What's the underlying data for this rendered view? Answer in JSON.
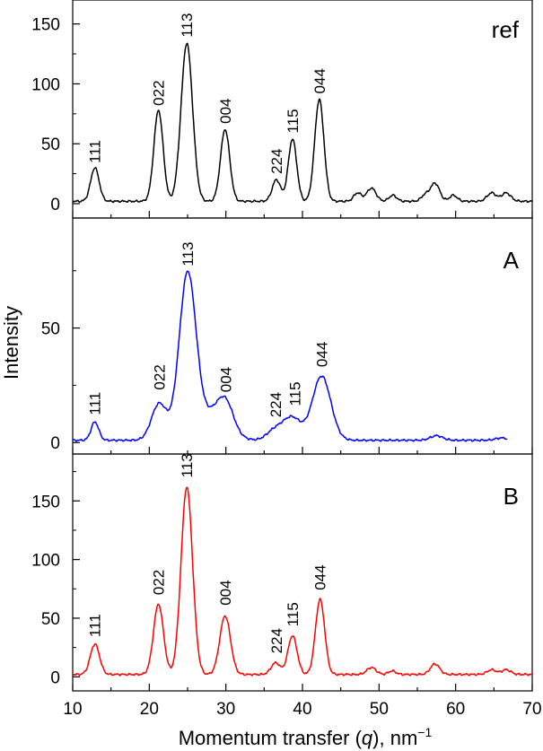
{
  "chart_data": {
    "type": "line",
    "xlabel": "Momentum transfer (q), nm",
    "xlabel_parts": {
      "prefix": "Momentum transfer (",
      "var": "q",
      "suffix": "), nm",
      "superscript": "−1"
    },
    "ylabel": "Intensity",
    "xlim": [
      10,
      70
    ],
    "x_ticks": [
      10,
      20,
      30,
      40,
      50,
      60,
      70
    ],
    "x_minor_step": 5,
    "panels": [
      {
        "label": "ref",
        "color": "#000000",
        "ylim": [
          -12,
          170
        ],
        "y_ticks": [
          0,
          50,
          100,
          150
        ],
        "x_end": 70,
        "baseline": 2,
        "peaks": [
          {
            "x": 12.9,
            "h": 28,
            "w": 0.55
          },
          {
            "x": 21.2,
            "h": 76,
            "w": 0.6
          },
          {
            "x": 24.9,
            "h": 132,
            "w": 0.75
          },
          {
            "x": 29.9,
            "h": 60,
            "w": 0.6
          },
          {
            "x": 36.6,
            "h": 18,
            "w": 0.55
          },
          {
            "x": 38.7,
            "h": 52,
            "w": 0.55
          },
          {
            "x": 42.2,
            "h": 85,
            "w": 0.6
          },
          {
            "x": 47.2,
            "h": 7,
            "w": 0.5
          },
          {
            "x": 49.0,
            "h": 11,
            "w": 0.6
          },
          {
            "x": 51.8,
            "h": 5,
            "w": 0.5
          },
          {
            "x": 56.0,
            "h": 5,
            "w": 0.5
          },
          {
            "x": 57.3,
            "h": 15,
            "w": 0.6
          },
          {
            "x": 59.7,
            "h": 5,
            "w": 0.5
          },
          {
            "x": 64.7,
            "h": 7,
            "w": 0.6
          },
          {
            "x": 66.6,
            "h": 7,
            "w": 0.6
          }
        ],
        "peak_labels": [
          {
            "text": "111",
            "x": 12.9,
            "y": 30
          },
          {
            "text": "022",
            "x": 21.2,
            "y": 78
          },
          {
            "text": "113",
            "x": 24.9,
            "y": 135
          },
          {
            "text": "004",
            "x": 29.9,
            "y": 63
          },
          {
            "text": "224",
            "x": 36.6,
            "y": 21
          },
          {
            "text": "115",
            "x": 38.7,
            "y": 55
          },
          {
            "text": "044",
            "x": 42.2,
            "y": 88
          }
        ]
      },
      {
        "label": "A",
        "color": "#0000ff",
        "ylim": [
          -5,
          98
        ],
        "y_ticks": [
          0,
          50
        ],
        "x_end": 66.7,
        "baseline": 1,
        "peaks": [
          {
            "x": 12.9,
            "h": 8,
            "w": 0.5
          },
          {
            "x": 21.3,
            "h": 16,
            "w": 1.0
          },
          {
            "x": 25.0,
            "h": 72,
            "w": 1.1
          },
          {
            "x": 28.5,
            "h": 12,
            "w": 1.8
          },
          {
            "x": 30.0,
            "h": 10,
            "w": 1.0
          },
          {
            "x": 36.3,
            "h": 4,
            "w": 1.0
          },
          {
            "x": 38.6,
            "h": 10,
            "w": 1.2
          },
          {
            "x": 42.5,
            "h": 28,
            "w": 1.2
          },
          {
            "x": 57.5,
            "h": 2,
            "w": 0.8
          },
          {
            "x": 66.0,
            "h": 1,
            "w": 0.8
          }
        ],
        "peak_labels": [
          {
            "text": "111",
            "x": 12.9,
            "y": 10
          },
          {
            "text": "022",
            "x": 21.3,
            "y": 21
          },
          {
            "text": "113",
            "x": 25.0,
            "y": 75
          },
          {
            "text": "004",
            "x": 30.0,
            "y": 20
          },
          {
            "text": "224",
            "x": 36.5,
            "y": 9
          },
          {
            "text": "115",
            "x": 39.0,
            "y": 14
          },
          {
            "text": "044",
            "x": 42.5,
            "y": 31
          }
        ]
      },
      {
        "label": "B",
        "color": "#ff0000",
        "ylim": [
          -12,
          190
        ],
        "y_ticks": [
          0,
          50,
          100,
          150
        ],
        "x_end": 70,
        "baseline": 2,
        "peaks": [
          {
            "x": 12.9,
            "h": 26,
            "w": 0.6
          },
          {
            "x": 21.2,
            "h": 60,
            "w": 0.65
          },
          {
            "x": 24.9,
            "h": 160,
            "w": 0.75
          },
          {
            "x": 29.9,
            "h": 50,
            "w": 0.7
          },
          {
            "x": 36.5,
            "h": 10,
            "w": 0.6
          },
          {
            "x": 38.7,
            "h": 33,
            "w": 0.6
          },
          {
            "x": 42.3,
            "h": 64,
            "w": 0.6
          },
          {
            "x": 49.0,
            "h": 6,
            "w": 0.6
          },
          {
            "x": 51.7,
            "h": 3,
            "w": 0.5
          },
          {
            "x": 57.3,
            "h": 9,
            "w": 0.6
          },
          {
            "x": 64.7,
            "h": 4,
            "w": 0.6
          },
          {
            "x": 66.6,
            "h": 4,
            "w": 0.6
          }
        ],
        "peak_labels": [
          {
            "text": "111",
            "x": 12.9,
            "y": 30
          },
          {
            "text": "022",
            "x": 21.2,
            "y": 66
          },
          {
            "text": "113",
            "x": 24.9,
            "y": 166
          },
          {
            "text": "004",
            "x": 29.9,
            "y": 57
          },
          {
            "text": "224",
            "x": 36.6,
            "y": 16
          },
          {
            "text": "115",
            "x": 38.7,
            "y": 39
          },
          {
            "text": "044",
            "x": 42.3,
            "y": 70
          }
        ]
      }
    ]
  }
}
